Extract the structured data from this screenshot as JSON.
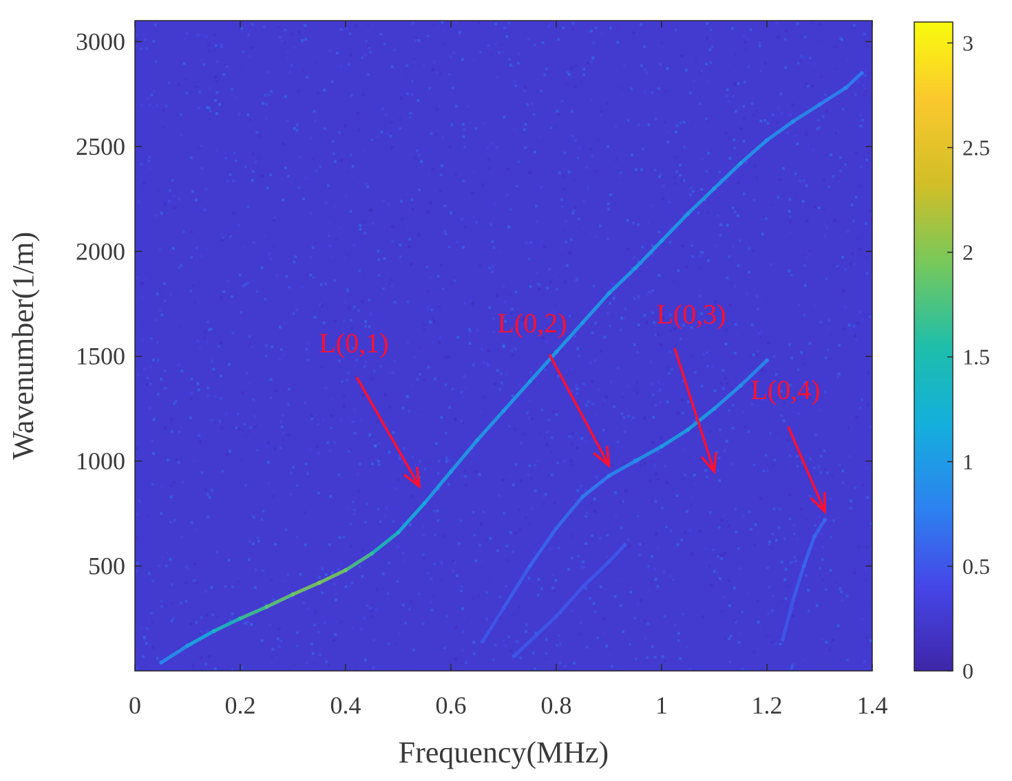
{
  "chart_data": {
    "type": "heatmap",
    "xlabel": "Frequency(MHz)",
    "ylabel": "Wavenumber(1/m)",
    "xlim": [
      0,
      1.4
    ],
    "ylim": [
      0,
      3100
    ],
    "x_ticks": [
      0,
      0.2,
      0.4,
      0.6,
      0.8,
      1,
      1.2,
      1.4
    ],
    "x_tick_labels": [
      "0",
      "0.2",
      "0.4",
      "0.6",
      "0.8",
      "1",
      "1.2",
      "1.4"
    ],
    "y_ticks": [
      500,
      1000,
      1500,
      2000,
      2500,
      3000
    ],
    "y_tick_labels": [
      "500",
      "1000",
      "1500",
      "2000",
      "2500",
      "3000"
    ],
    "colormap": "parula",
    "colorbar": {
      "range": [
        0,
        3.1
      ],
      "ticks": [
        0,
        0.5,
        1,
        1.5,
        2,
        2.5,
        3
      ],
      "tick_labels": [
        "0",
        "0.5",
        "1",
        "1.5",
        "2",
        "2.5",
        "3"
      ]
    },
    "background_level": 0.25,
    "series": [
      {
        "name": "L(0,1)",
        "points": [
          [
            0.05,
            40
          ],
          [
            0.1,
            120
          ],
          [
            0.15,
            190
          ],
          [
            0.2,
            250
          ],
          [
            0.25,
            305
          ],
          [
            0.3,
            365
          ],
          [
            0.35,
            420
          ],
          [
            0.4,
            480
          ],
          [
            0.45,
            560
          ],
          [
            0.5,
            660
          ],
          [
            0.55,
            800
          ],
          [
            0.6,
            950
          ],
          [
            0.65,
            1100
          ],
          [
            0.7,
            1240
          ],
          [
            0.75,
            1380
          ],
          [
            0.8,
            1520
          ],
          [
            0.85,
            1660
          ],
          [
            0.9,
            1800
          ],
          [
            0.95,
            1920
          ],
          [
            1.0,
            2050
          ],
          [
            1.05,
            2180
          ],
          [
            1.1,
            2300
          ],
          [
            1.15,
            2420
          ],
          [
            1.2,
            2530
          ],
          [
            1.25,
            2620
          ],
          [
            1.3,
            2700
          ],
          [
            1.35,
            2780
          ],
          [
            1.38,
            2850
          ]
        ],
        "intensity": [
          0.8,
          1.0,
          1.3,
          1.6,
          1.8,
          1.9,
          2.0,
          1.9,
          1.6,
          1.3,
          1.1,
          1.0,
          1.0,
          1.0,
          1.0,
          1.0,
          1.0,
          1.0,
          1.0,
          1.0,
          1.0,
          1.0,
          1.0,
          0.9,
          0.9,
          0.8,
          0.8,
          0.7
        ]
      },
      {
        "name": "L(0,2)",
        "points": [
          [
            0.66,
            140
          ],
          [
            0.7,
            300
          ],
          [
            0.75,
            500
          ],
          [
            0.8,
            680
          ],
          [
            0.85,
            830
          ],
          [
            0.9,
            930
          ],
          [
            0.95,
            1000
          ],
          [
            1.0,
            1070
          ],
          [
            1.05,
            1150
          ],
          [
            1.1,
            1250
          ],
          [
            1.15,
            1360
          ],
          [
            1.2,
            1480
          ]
        ],
        "intensity": [
          0.5,
          0.5,
          0.6,
          0.6,
          0.7,
          0.8,
          0.9,
          1.0,
          1.1,
          1.0,
          0.9,
          0.8
        ]
      },
      {
        "name": "L(0,3)",
        "points": [
          [
            0.72,
            70
          ],
          [
            0.8,
            260
          ],
          [
            0.85,
            400
          ],
          [
            0.9,
            520
          ],
          [
            0.93,
            600
          ]
        ],
        "intensity": [
          0.5,
          0.5,
          0.5,
          0.5,
          0.5
        ]
      },
      {
        "name": "L(0,4)",
        "points": [
          [
            1.23,
            150
          ],
          [
            1.25,
            340
          ],
          [
            1.27,
            500
          ],
          [
            1.29,
            640
          ],
          [
            1.31,
            720
          ]
        ],
        "intensity": [
          0.5,
          0.5,
          0.6,
          0.6,
          0.6
        ]
      }
    ],
    "annotations": [
      {
        "text": "L(0,1)",
        "arrow_target": [
          0.54,
          880
        ]
      },
      {
        "text": "L(0,2)",
        "arrow_target": [
          0.9,
          980
        ]
      },
      {
        "text": "L(0,3)",
        "arrow_target": [
          1.1,
          950
        ]
      },
      {
        "text": "L(0,4)",
        "arrow_target": [
          1.31,
          760
        ]
      }
    ],
    "annotation_color": "#ff1030"
  }
}
